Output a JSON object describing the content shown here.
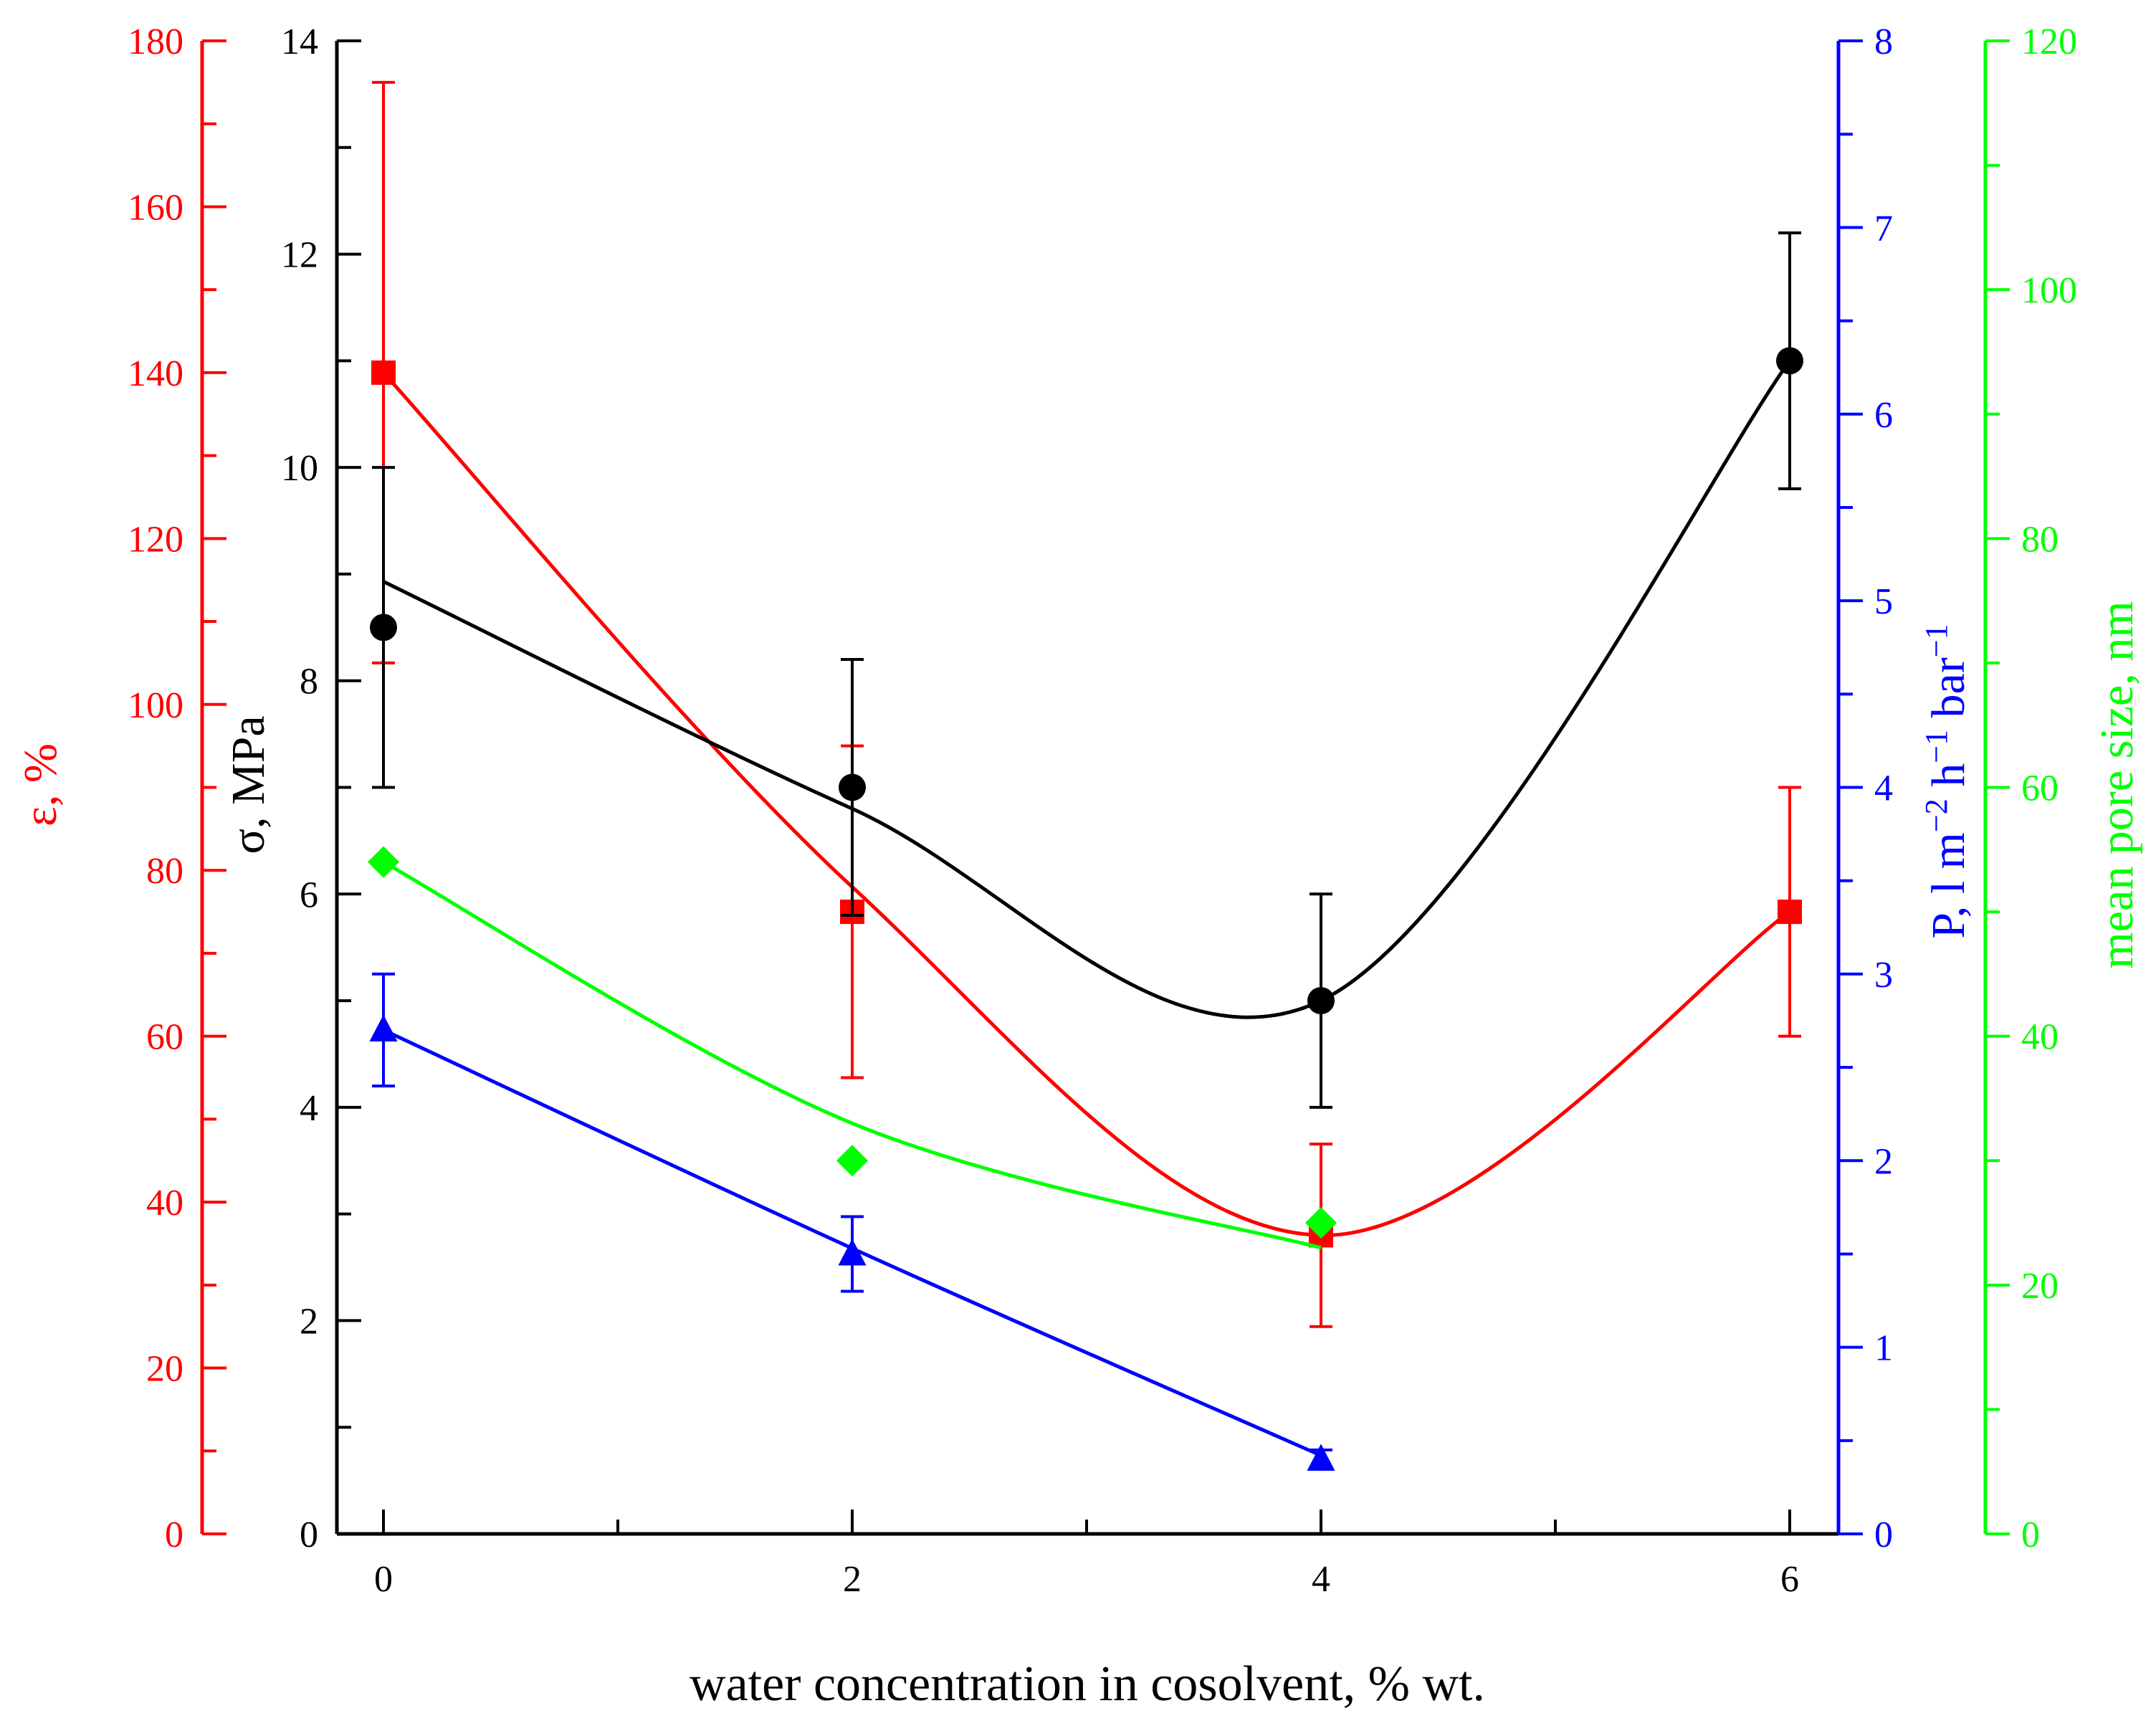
{
  "chart_data": {
    "type": "line",
    "xlabel": "water concentration in cosolvent, % wt.",
    "x_ticks": [
      "0",
      "2",
      "4",
      "6"
    ],
    "xlim": [
      -0.2,
      6.2
    ],
    "axes": [
      {
        "id": "eps",
        "label": "ε, %",
        "color": "#ff0000",
        "ylim": [
          0,
          180
        ],
        "major_ticks": [
          "0",
          "20",
          "40",
          "60",
          "80",
          "100",
          "120",
          "140",
          "160",
          "180"
        ],
        "major_step": 20
      },
      {
        "id": "sigma",
        "label": "σ, MPa",
        "color": "#000000",
        "ylim": [
          0,
          14
        ],
        "major_ticks": [
          "0",
          "2",
          "4",
          "6",
          "8",
          "10",
          "12",
          "14"
        ],
        "major_step": 2
      },
      {
        "id": "perm",
        "label_parts": [
          "P, l m",
          "−2",
          " h",
          "−1",
          " bar",
          "−1"
        ],
        "color": "#0000ff",
        "ylim": [
          0,
          8
        ],
        "major_ticks": [
          "0",
          "1",
          "2",
          "3",
          "4",
          "5",
          "6",
          "7",
          "8"
        ],
        "major_step": 1
      },
      {
        "id": "pore",
        "label": "mean pore size, nm",
        "color": "#00ff00",
        "ylim": [
          0,
          120
        ],
        "major_ticks": [
          "0",
          "20",
          "40",
          "60",
          "80",
          "100",
          "120"
        ],
        "major_step": 20
      }
    ],
    "series": [
      {
        "name": "ε, %",
        "axis": "eps",
        "color": "#ff0000",
        "marker": "square",
        "points": [
          {
            "x": 0,
            "y": 140,
            "err": 35
          },
          {
            "x": 2,
            "y": 75,
            "err": 20
          },
          {
            "x": 4,
            "y": 36,
            "err": 11
          },
          {
            "x": 6,
            "y": 75,
            "err": 15
          }
        ],
        "fit": [
          [
            0,
            140
          ],
          [
            2,
            78
          ],
          [
            4,
            36
          ],
          [
            6,
            75
          ]
        ]
      },
      {
        "name": "σ, MPa",
        "axis": "sigma",
        "color": "#000000",
        "marker": "circle",
        "points": [
          {
            "x": 0,
            "y": 8.5,
            "err": 1.5
          },
          {
            "x": 2,
            "y": 7.0,
            "err": 1.2
          },
          {
            "x": 4,
            "y": 5.0,
            "err": 1.0
          },
          {
            "x": 6,
            "y": 11.0,
            "err": 1.2
          }
        ],
        "fit": [
          [
            0,
            8.93
          ],
          [
            2,
            6.8
          ],
          [
            4,
            5.0
          ],
          [
            6,
            11.0
          ]
        ]
      },
      {
        "name": "P, l m−2 h−1 bar−1",
        "axis": "perm",
        "color": "#0000ff",
        "marker": "triangle",
        "points": [
          {
            "x": 0,
            "y": 2.7,
            "err": 0.3
          },
          {
            "x": 2,
            "y": 1.5,
            "err": 0.2
          },
          {
            "x": 4,
            "y": 0.4,
            "err": 0.05
          }
        ],
        "fit": [
          [
            0,
            2.7
          ],
          [
            2,
            1.53
          ],
          [
            4,
            0.42
          ]
        ]
      },
      {
        "name": "mean pore size, nm",
        "axis": "pore",
        "color": "#00ff00",
        "marker": "diamond",
        "points": [
          {
            "x": 0,
            "y": 54
          },
          {
            "x": 2,
            "y": 30
          },
          {
            "x": 4,
            "y": 25
          }
        ],
        "fit": [
          [
            0,
            54
          ],
          [
            2,
            33
          ],
          [
            4,
            23
          ]
        ]
      }
    ]
  }
}
